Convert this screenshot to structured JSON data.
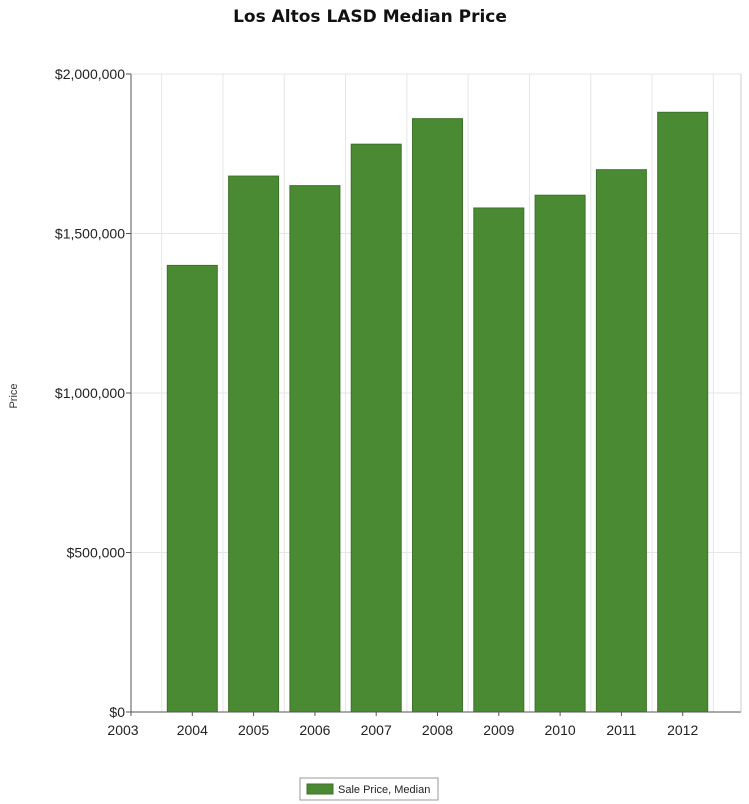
{
  "chart_data": {
    "type": "bar",
    "title": "Los Altos LASD Median Price",
    "xlabel": "",
    "ylabel": "Price",
    "x_ticks": [
      "2003",
      "2004",
      "2005",
      "2006",
      "2007",
      "2008",
      "2009",
      "2010",
      "2011",
      "2012"
    ],
    "categories": [
      "2004",
      "2005",
      "2006",
      "2007",
      "2008",
      "2009",
      "2010",
      "2011",
      "2012"
    ],
    "series": [
      {
        "name": "Sale Price, Median",
        "values": [
          1400000,
          1680000,
          1650000,
          1780000,
          1860000,
          1580000,
          1620000,
          1700000,
          1880000
        ]
      }
    ],
    "ylim": [
      0,
      2000000
    ],
    "y_ticks": [
      "$0",
      "$500,000",
      "$1,000,000",
      "$1,500,000",
      "$2,000,000"
    ],
    "grid": true,
    "legend_position": "bottom-center",
    "colors": {
      "bar": "#4a8a33",
      "bar_edge": "#3c7229",
      "grid": "#e6e6e6",
      "axis": "#555555"
    }
  }
}
